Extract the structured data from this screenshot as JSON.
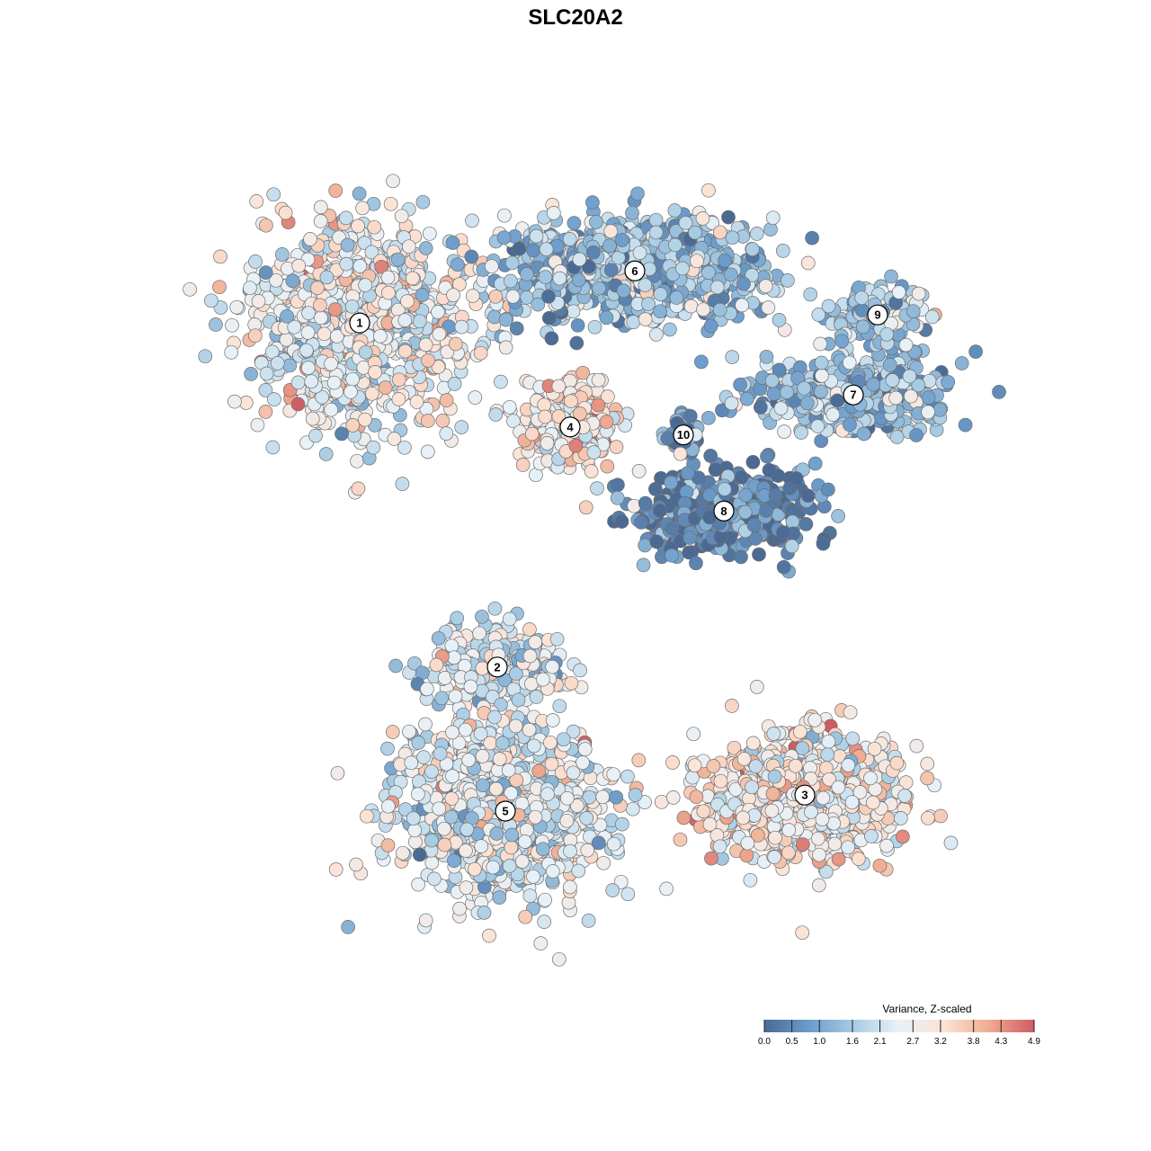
{
  "chart_data": {
    "type": "scatter",
    "title": "SLC20A2",
    "legend": {
      "title": "Variance, Z-scaled",
      "position": "bottom-right",
      "ticks": [
        "0.0",
        "0.5",
        "1.0",
        "1.6",
        "2.1",
        "2.7",
        "3.2",
        "3.8",
        "4.3",
        "4.9"
      ],
      "range": [
        0.0,
        4.9
      ]
    },
    "color_scale": [
      "#4a6a94",
      "#6b9ccb",
      "#a9cde4",
      "#e8f1f7",
      "#fbe3d5",
      "#efac90",
      "#cf5b63"
    ],
    "clusters": [
      {
        "label": "1",
        "x": -3.0,
        "y": 3.1,
        "mean": 2.6,
        "spread": [
          1.3,
          1.15
        ],
        "n": 900
      },
      {
        "label": "2",
        "x": -1.3,
        "y": -1.2,
        "mean": 2.2,
        "spread": [
          0.75,
          0.45
        ],
        "n": 300
      },
      {
        "label": "3",
        "x": 2.5,
        "y": -2.8,
        "mean": 3.0,
        "spread": [
          1.15,
          0.75
        ],
        "n": 750
      },
      {
        "label": "4",
        "x": -0.4,
        "y": 1.8,
        "mean": 3.1,
        "spread": [
          0.5,
          0.5
        ],
        "n": 300
      },
      {
        "label": "5",
        "x": -1.2,
        "y": -3.0,
        "mean": 2.4,
        "spread": [
          1.2,
          0.95
        ],
        "n": 1000
      },
      {
        "label": "6",
        "x": 0.4,
        "y": 3.75,
        "mean": 1.5,
        "spread": [
          1.35,
          0.55
        ],
        "n": 1000
      },
      {
        "label": "7",
        "x": 3.1,
        "y": 2.2,
        "mean": 1.4,
        "spread": [
          1.1,
          0.45
        ],
        "n": 450
      },
      {
        "label": "8",
        "x": 1.5,
        "y": 0.75,
        "mean": 0.3,
        "spread": [
          0.95,
          0.45
        ],
        "n": 500
      },
      {
        "label": "9",
        "x": 3.4,
        "y": 3.2,
        "mean": 1.6,
        "spread": [
          0.55,
          0.3
        ],
        "n": 200
      },
      {
        "label": "10",
        "x": 1.0,
        "y": 1.7,
        "mean": 1.0,
        "spread": [
          0.2,
          0.25
        ],
        "n": 60
      }
    ],
    "xlim": [
      -5.0,
      5.0
    ],
    "ylim": [
      -5.0,
      5.0
    ]
  }
}
